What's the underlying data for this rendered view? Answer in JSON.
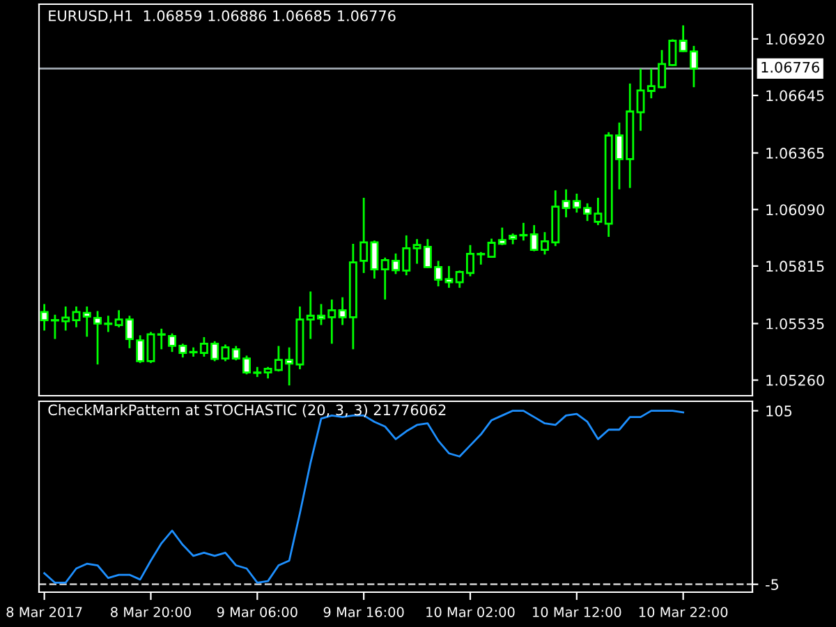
{
  "chart_data": [
    {
      "type": "candlestick",
      "title": "EURUSD,H1  1.06859 1.06886 1.06685 1.06776",
      "color": "#00ff00",
      "categories": [
        null,
        null,
        null,
        null,
        null,
        null,
        null,
        null,
        null,
        null,
        null,
        null,
        null,
        null,
        null,
        null,
        null,
        null,
        null,
        null,
        null,
        null,
        null,
        null,
        null,
        null,
        null,
        null,
        null,
        null,
        null,
        null,
        null,
        null,
        null,
        null,
        null,
        null,
        null,
        null,
        null,
        null,
        null,
        null,
        null,
        null,
        null,
        null,
        null,
        null,
        null,
        null,
        null,
        null,
        null,
        null,
        null,
        null,
        null,
        null,
        null,
        null,
        null,
        null,
        null,
        null,
        null
      ],
      "ohlc": [
        [
          1.05591,
          1.0563,
          1.05501,
          1.05551
        ],
        [
          1.0555,
          1.05578,
          1.0546,
          1.05552
        ],
        [
          1.05546,
          1.05618,
          1.05501,
          1.05564
        ],
        [
          1.05551,
          1.05618,
          1.05517,
          1.05591
        ],
        [
          1.05587,
          1.05618,
          1.05471,
          1.05569
        ],
        [
          1.05562,
          1.05596,
          1.05336,
          1.05535
        ],
        [
          1.05533,
          1.05573,
          1.05494,
          1.05535
        ],
        [
          1.05528,
          1.056,
          1.05517,
          1.05555
        ],
        [
          1.05555,
          1.05573,
          1.05415,
          1.0546
        ],
        [
          1.05453,
          1.05478,
          1.05343,
          1.05352
        ],
        [
          1.05352,
          1.05494,
          1.05343,
          1.05483
        ],
        [
          1.05481,
          1.0551,
          1.0541,
          1.05483
        ],
        [
          1.05474,
          1.05487,
          1.05397,
          1.05427
        ],
        [
          1.05427,
          1.05437,
          1.0537,
          1.05392
        ],
        [
          1.05395,
          1.05419,
          1.05374,
          1.05397
        ],
        [
          1.05392,
          1.05469,
          1.05374,
          1.05437
        ],
        [
          1.05437,
          1.05449,
          1.05352,
          1.05363
        ],
        [
          1.05365,
          1.05433,
          1.05352,
          1.05419
        ],
        [
          1.0541,
          1.05426,
          1.05356,
          1.05365
        ],
        [
          1.05365,
          1.05379,
          1.05288,
          1.05297
        ],
        [
          1.05295,
          1.05324,
          1.05275,
          1.05297
        ],
        [
          1.05297,
          1.05324,
          1.05268,
          1.05315
        ],
        [
          1.05309,
          1.05426,
          1.05302,
          1.05358
        ],
        [
          1.05358,
          1.05419,
          1.05234,
          1.0534
        ],
        [
          1.05336,
          1.05618,
          1.05313,
          1.05555
        ],
        [
          1.05555,
          1.05691,
          1.0546,
          1.05573
        ],
        [
          1.05573,
          1.0563,
          1.05528,
          1.0556
        ],
        [
          1.05566,
          1.05652,
          1.05437,
          1.056
        ],
        [
          1.056,
          1.05663,
          1.05528,
          1.05566
        ],
        [
          1.05566,
          1.05923,
          1.0541,
          1.05833
        ],
        [
          1.0584,
          1.06147,
          1.05781,
          1.0593
        ],
        [
          1.0593,
          1.05939,
          1.05754,
          1.05799
        ],
        [
          1.05799,
          1.05856,
          1.05652,
          1.05844
        ],
        [
          1.0584,
          1.05876,
          1.05776,
          1.05795
        ],
        [
          1.05793,
          1.05964,
          1.0577,
          1.05901
        ],
        [
          1.05901,
          1.05946,
          1.05826,
          1.05917
        ],
        [
          1.05908,
          1.05946,
          1.05806,
          1.0581
        ],
        [
          1.0581,
          1.0584,
          1.05716,
          1.05749
        ],
        [
          1.05751,
          1.05815,
          1.05709,
          1.05736
        ],
        [
          1.05736,
          1.05793,
          1.05709,
          1.05786
        ],
        [
          1.05781,
          1.05917,
          1.05765,
          1.05874
        ],
        [
          1.05872,
          1.05883,
          1.05822,
          1.05874
        ],
        [
          1.0586,
          1.05948,
          1.05856,
          1.05928
        ],
        [
          1.05941,
          1.06002,
          1.05917,
          1.05923
        ],
        [
          1.05962,
          1.05973,
          1.05921,
          1.05948
        ],
        [
          1.05964,
          1.06025,
          1.05939,
          1.05966
        ],
        [
          1.05969,
          1.06014,
          1.05887,
          1.05894
        ],
        [
          1.05894,
          1.0598,
          1.05871,
          1.05935
        ],
        [
          1.0593,
          1.06183,
          1.05912,
          1.06104
        ],
        [
          1.06131,
          1.06188,
          1.06052,
          1.06097
        ],
        [
          1.06131,
          1.06167,
          1.06075,
          1.061
        ],
        [
          1.06097,
          1.0612,
          1.06034,
          1.0607
        ],
        [
          1.0603,
          1.06147,
          1.06014,
          1.0607
        ],
        [
          1.06021,
          1.06466,
          1.05957,
          1.0645
        ],
        [
          1.0645,
          1.06513,
          1.06188,
          1.06335
        ],
        [
          1.06335,
          1.06703,
          1.06195,
          1.06567
        ],
        [
          1.06563,
          1.06775,
          1.06473,
          1.06669
        ],
        [
          1.06667,
          1.06775,
          1.06631,
          1.0669
        ],
        [
          1.06685,
          1.06866,
          1.0668,
          1.06798
        ],
        [
          1.06793,
          1.06918,
          1.06789,
          1.06911
        ],
        [
          1.06911,
          1.06986,
          1.06857,
          1.06861
        ],
        [
          1.06859,
          1.06886,
          1.06685,
          1.06776
        ],
        null,
        null,
        null,
        null,
        null
      ],
      "colors": [
        "#ffffff",
        "#000000",
        "#000000",
        "#000000",
        "#ffffff",
        "#ffffff",
        "#000000",
        "#000000",
        "#ffffff",
        "#ffffff",
        "#000000",
        "#000000",
        "#ffffff",
        "#ffffff",
        "#000000",
        "#000000",
        "#ffffff",
        "#000000",
        "#ffffff",
        "#ffffff",
        "#000000",
        "#000000",
        "#000000",
        "#ffffff",
        "#000000",
        "#000000",
        "#ffffff",
        "#000000",
        "#ffffff",
        "#000000",
        "#000000",
        "#ffffff",
        "#000000",
        "#ffffff",
        "#000000",
        "#000000",
        "#ffffff",
        "#ffffff",
        "#ffffff",
        "#000000",
        "#000000",
        "#000000",
        "#000000",
        "#ffffff",
        "#ffffff",
        "#000000",
        "#ffffff",
        "#000000",
        "#000000",
        "#ffffff",
        "#ffffff",
        "#ffffff",
        "#000000",
        "#000000",
        "#ffffff",
        "#000000",
        "#000000",
        "#000000",
        "#000000",
        "#000000",
        "#ffffff",
        "#ffffff",
        null,
        null,
        null,
        null,
        null
      ],
      "ylim": [
        1.05184,
        1.07089
      ],
      "yticks": [
        {
          "value": 1.0526,
          "label": "1.05260"
        },
        1.05535,
        1.05815,
        {
          "value": 1.0609,
          "label": "1.06090"
        },
        1.06365,
        1.06645,
        {
          "value": 1.0692,
          "label": "1.06920"
        }
      ],
      "ref_lines": [
        {
          "axis": "y",
          "value": 1.06776,
          "label": "1.06776",
          "color": "#a0a8b0"
        }
      ],
      "tick_labels": "y",
      "grid": false
    },
    {
      "type": "line",
      "title": "CheckMarkPattern at STOCHASTIC (20, 3, 3) 21776062",
      "categories": [
        "8 Mar 2017",
        null,
        null,
        null,
        null,
        null,
        null,
        null,
        null,
        null,
        "8 Mar 20:00",
        null,
        null,
        null,
        null,
        null,
        null,
        null,
        null,
        null,
        "9 Mar 06:00",
        null,
        null,
        null,
        null,
        null,
        null,
        null,
        null,
        null,
        "9 Mar 16:00",
        null,
        null,
        null,
        null,
        null,
        null,
        null,
        null,
        null,
        "10 Mar 02:00",
        null,
        null,
        null,
        null,
        null,
        null,
        null,
        null,
        null,
        "10 Mar 12:00",
        null,
        null,
        null,
        null,
        null,
        null,
        null,
        null,
        null,
        "10 Mar 22:00",
        null,
        null,
        null,
        null,
        null,
        null
      ],
      "series": [
        {
          "color": "#1e90ff",
          "values": [
            2,
            -4,
            -4,
            5,
            8,
            7,
            -1,
            1,
            1,
            -2,
            10,
            21,
            29,
            20,
            13,
            15,
            13,
            15,
            7,
            5,
            -4,
            -3,
            7,
            10,
            40,
            72,
            100,
            102,
            101,
            102,
            102,
            98,
            95,
            87,
            92,
            96,
            97,
            86,
            78,
            76,
            83,
            90,
            99,
            102,
            105,
            105,
            101,
            97,
            96,
            102,
            103,
            98,
            87,
            93,
            93,
            101,
            101,
            105,
            105,
            105,
            104,
            null,
            null,
            null,
            null,
            null,
            null
          ]
        }
      ],
      "ylim": [
        -10,
        111
      ],
      "yticks": [
        105,
        -5
      ],
      "ref_lines": [
        {
          "axis": "y",
          "value": -5,
          "color": "#c0c0c0",
          "line_style": "dashed"
        }
      ],
      "grid": false,
      "line_style": "solid",
      "marker": "none"
    }
  ]
}
